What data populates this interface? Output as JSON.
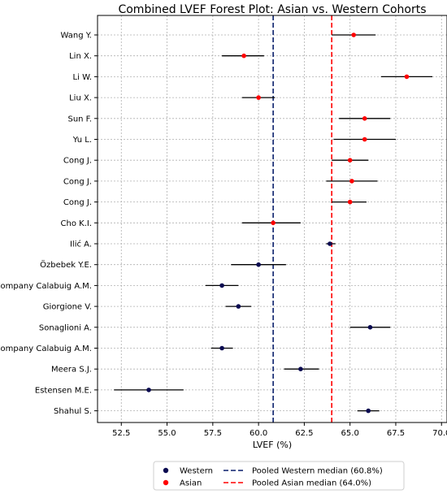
{
  "chart_data": {
    "type": "forest",
    "title": "Combined LVEF Forest Plot: Asian vs. Western Cohorts",
    "xlabel": "LVEF (%)",
    "ylabel": "",
    "xlim": [
      51.2,
      70.3
    ],
    "xticks": [
      "52.5",
      "55.0",
      "57.5",
      "60.0",
      "62.5",
      "65.0",
      "67.5",
      "70.0"
    ],
    "grid": true,
    "legend_position": "bottom",
    "colors": {
      "Western": "#0a0a50",
      "Asian": "#ff0000"
    },
    "studies": [
      {
        "label": "Wang Y.",
        "group": "Asian",
        "estimate": 65.2,
        "lower": 64.0,
        "upper": 66.4
      },
      {
        "label": "Lin X.",
        "group": "Asian",
        "estimate": 59.2,
        "lower": 58.0,
        "upper": 60.3
      },
      {
        "label": "Li W.",
        "group": "Asian",
        "estimate": 68.1,
        "lower": 66.7,
        "upper": 69.5
      },
      {
        "label": "Liu X.",
        "group": "Asian",
        "estimate": 60.0,
        "lower": 59.1,
        "upper": 60.9
      },
      {
        "label": "Sun F.",
        "group": "Asian",
        "estimate": 65.8,
        "lower": 64.4,
        "upper": 67.2
      },
      {
        "label": "Yu L.",
        "group": "Asian",
        "estimate": 65.8,
        "lower": 64.1,
        "upper": 67.5
      },
      {
        "label": "Cong J.",
        "group": "Asian",
        "estimate": 65.0,
        "lower": 64.0,
        "upper": 66.0
      },
      {
        "label": "Cong J.",
        "group": "Asian",
        "estimate": 65.1,
        "lower": 63.7,
        "upper": 66.5
      },
      {
        "label": "Cong J.",
        "group": "Asian",
        "estimate": 65.0,
        "lower": 64.0,
        "upper": 65.9
      },
      {
        "label": "Cho K.I.",
        "group": "Asian",
        "estimate": 60.8,
        "lower": 59.1,
        "upper": 62.3
      },
      {
        "label": "Ilić A.",
        "group": "Western",
        "estimate": 63.9,
        "lower": 63.7,
        "upper": 64.2
      },
      {
        "label": "Özbebek Y.E.",
        "group": "Western",
        "estimate": 60.0,
        "lower": 58.5,
        "upper": 61.5
      },
      {
        "label": "Company Calabuig A.M.",
        "group": "Western",
        "estimate": 58.0,
        "lower": 57.1,
        "upper": 58.9
      },
      {
        "label": "Giorgione V.",
        "group": "Western",
        "estimate": 58.9,
        "lower": 58.2,
        "upper": 59.6
      },
      {
        "label": "Sonaglioni A.",
        "group": "Western",
        "estimate": 66.1,
        "lower": 65.0,
        "upper": 67.2
      },
      {
        "label": "Company Calabuig A.M.",
        "group": "Western",
        "estimate": 58.0,
        "lower": 57.4,
        "upper": 58.6
      },
      {
        "label": "Meera S.J.",
        "group": "Western",
        "estimate": 62.3,
        "lower": 61.4,
        "upper": 63.3
      },
      {
        "label": "Estensen M.E.",
        "group": "Western",
        "estimate": 54.0,
        "lower": 52.1,
        "upper": 55.9
      },
      {
        "label": "Shahul S.",
        "group": "Western",
        "estimate": 66.0,
        "lower": 65.4,
        "upper": 66.6
      }
    ],
    "reference_lines": [
      {
        "name": "Pooled Western median (60.8%)",
        "value": 60.8,
        "color": "#0a1f6b",
        "style": "dashed"
      },
      {
        "name": "Pooled Asian median (64.0%)",
        "value": 64.0,
        "color": "#ff0000",
        "style": "dashed"
      }
    ],
    "legend": [
      {
        "label": "Western",
        "kind": "marker",
        "color": "#0a0a50"
      },
      {
        "label": "Pooled Western median (60.8%)",
        "kind": "line",
        "color": "#0a1f6b"
      },
      {
        "label": "Asian",
        "kind": "marker",
        "color": "#ff0000"
      },
      {
        "label": "Pooled Asian median (64.0%)",
        "kind": "line",
        "color": "#ff0000"
      }
    ]
  }
}
